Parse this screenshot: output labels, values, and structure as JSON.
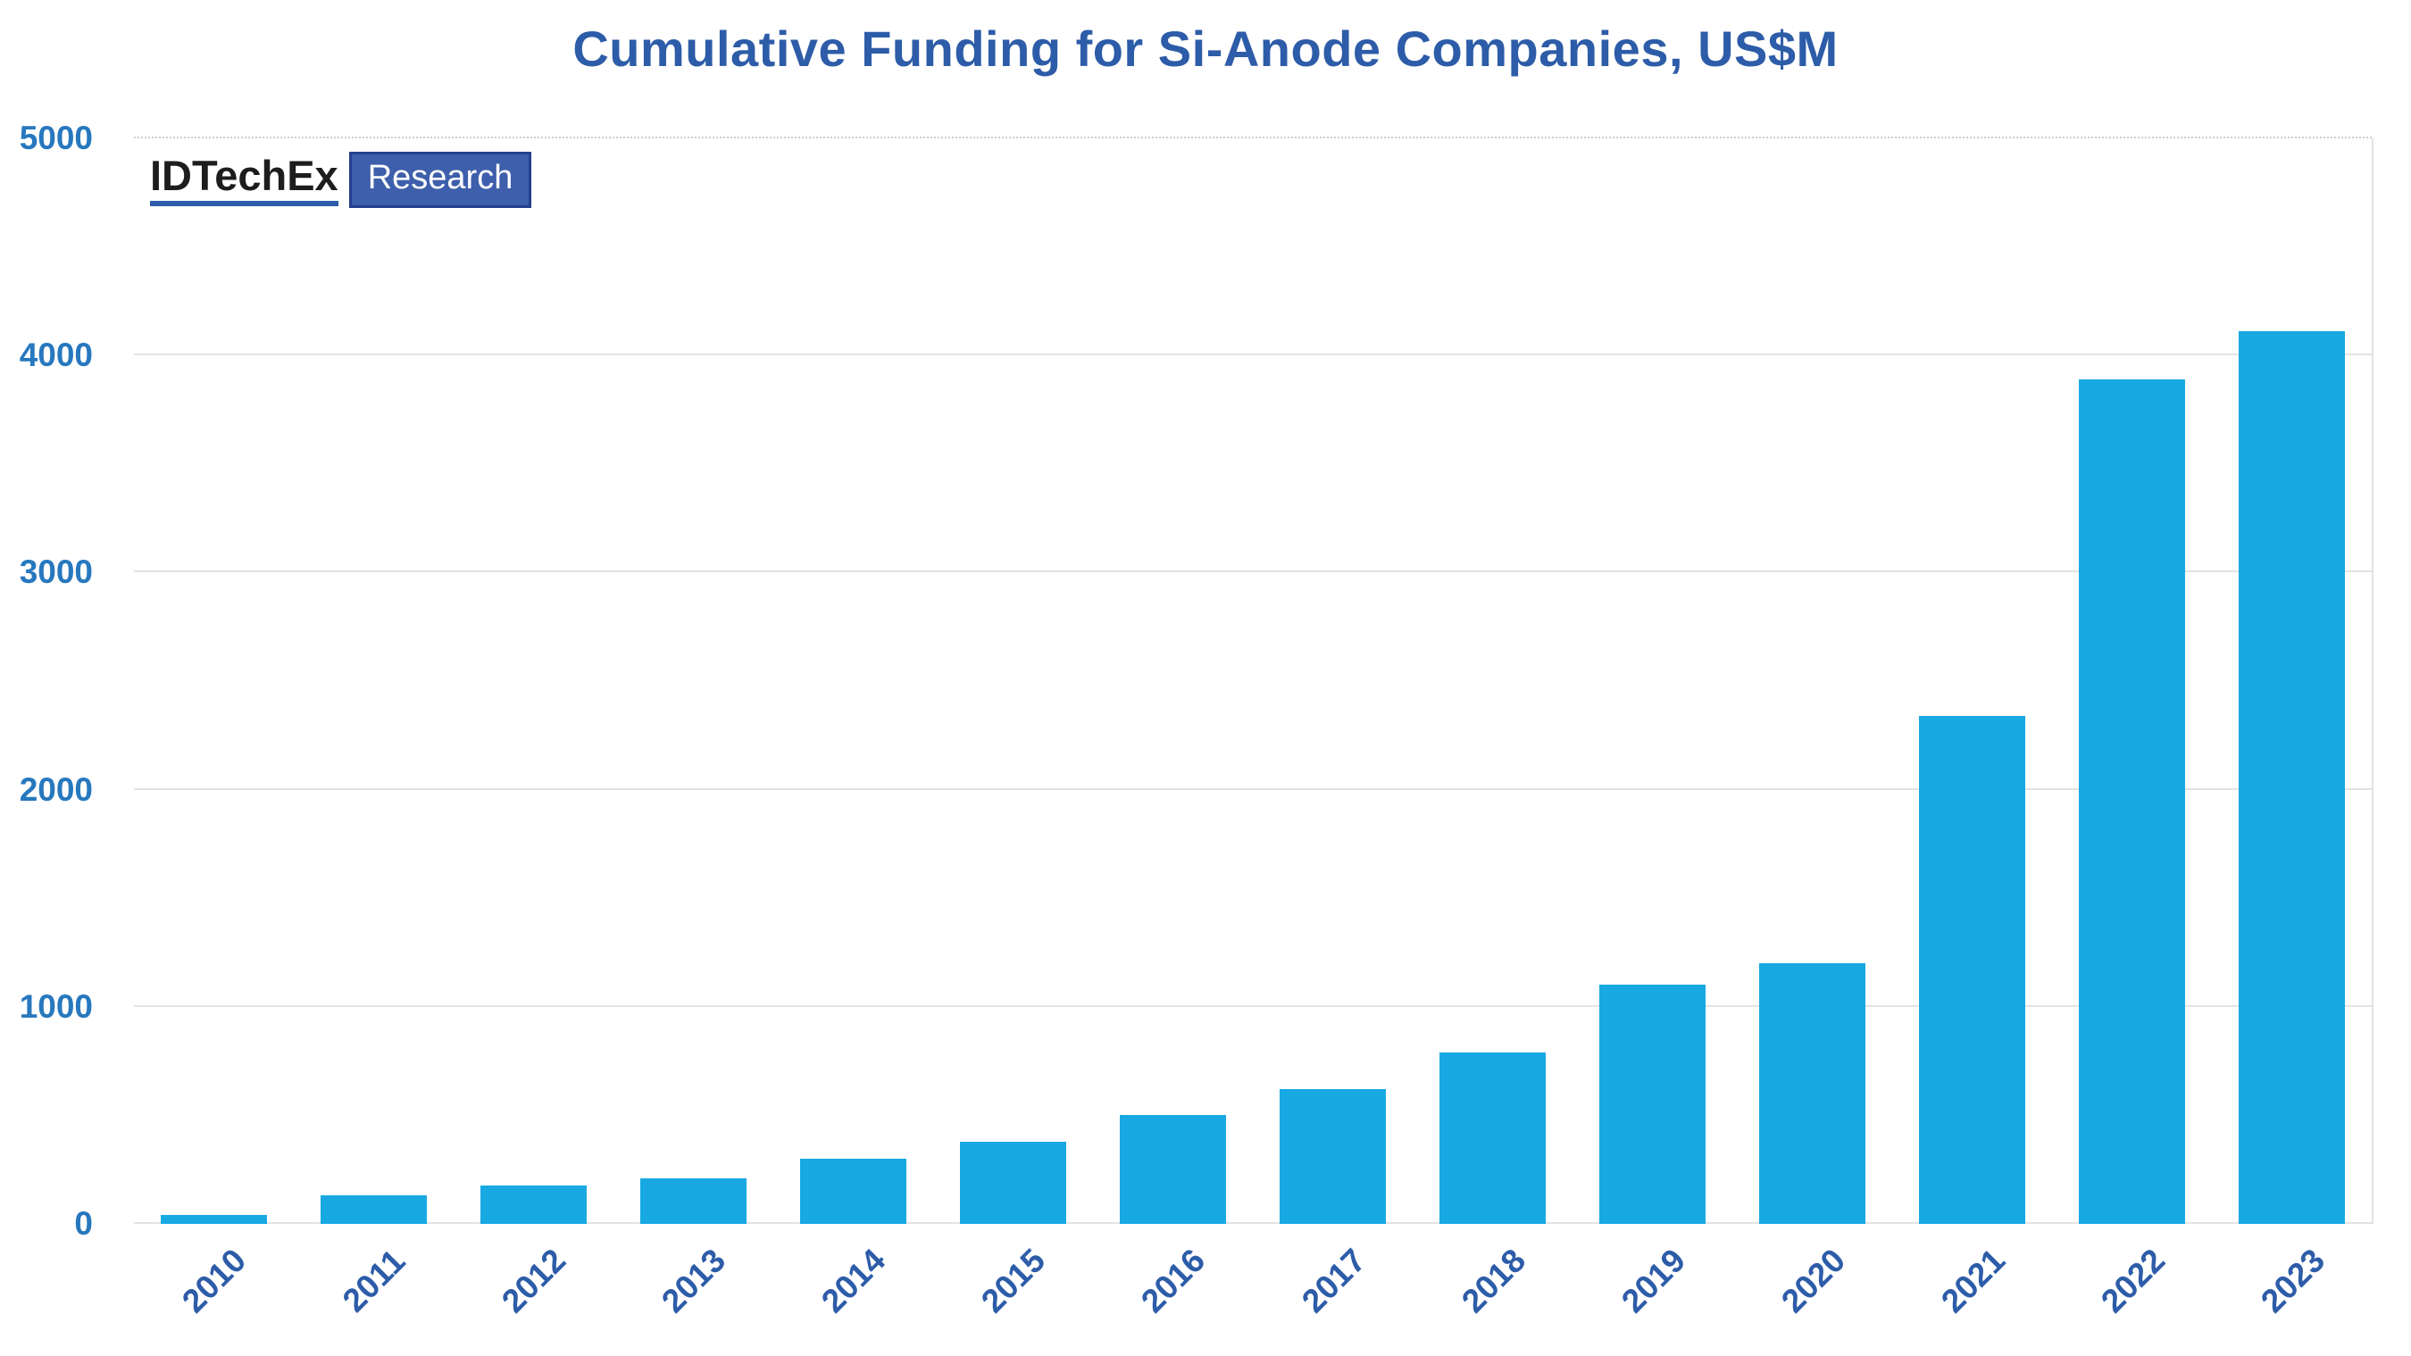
{
  "title": "Cumulative Funding for Si-Anode Companies, US$M",
  "logo": {
    "brand": "IDTechEx",
    "badge": "Research"
  },
  "chart_data": {
    "type": "bar",
    "title": "Cumulative Funding for Si-Anode Companies, US$M",
    "categories": [
      "2010",
      "2011",
      "2012",
      "2013",
      "2014",
      "2015",
      "2016",
      "2017",
      "2018",
      "2019",
      "2020",
      "2021",
      "2022",
      "2023"
    ],
    "values": [
      40,
      130,
      175,
      210,
      300,
      380,
      500,
      620,
      790,
      1100,
      1200,
      2340,
      3890,
      4110
    ],
    "xlabel": "",
    "ylabel": "",
    "ylim": [
      0,
      5000
    ],
    "yticks": [
      0,
      1000,
      2000,
      3000,
      4000,
      5000
    ],
    "grid": true,
    "legend": "none",
    "bar_color": "#18a9e2",
    "title_color": "#2d5ca8",
    "ytick_color": "#2778be",
    "xtick_color": "#2d5ca8"
  }
}
